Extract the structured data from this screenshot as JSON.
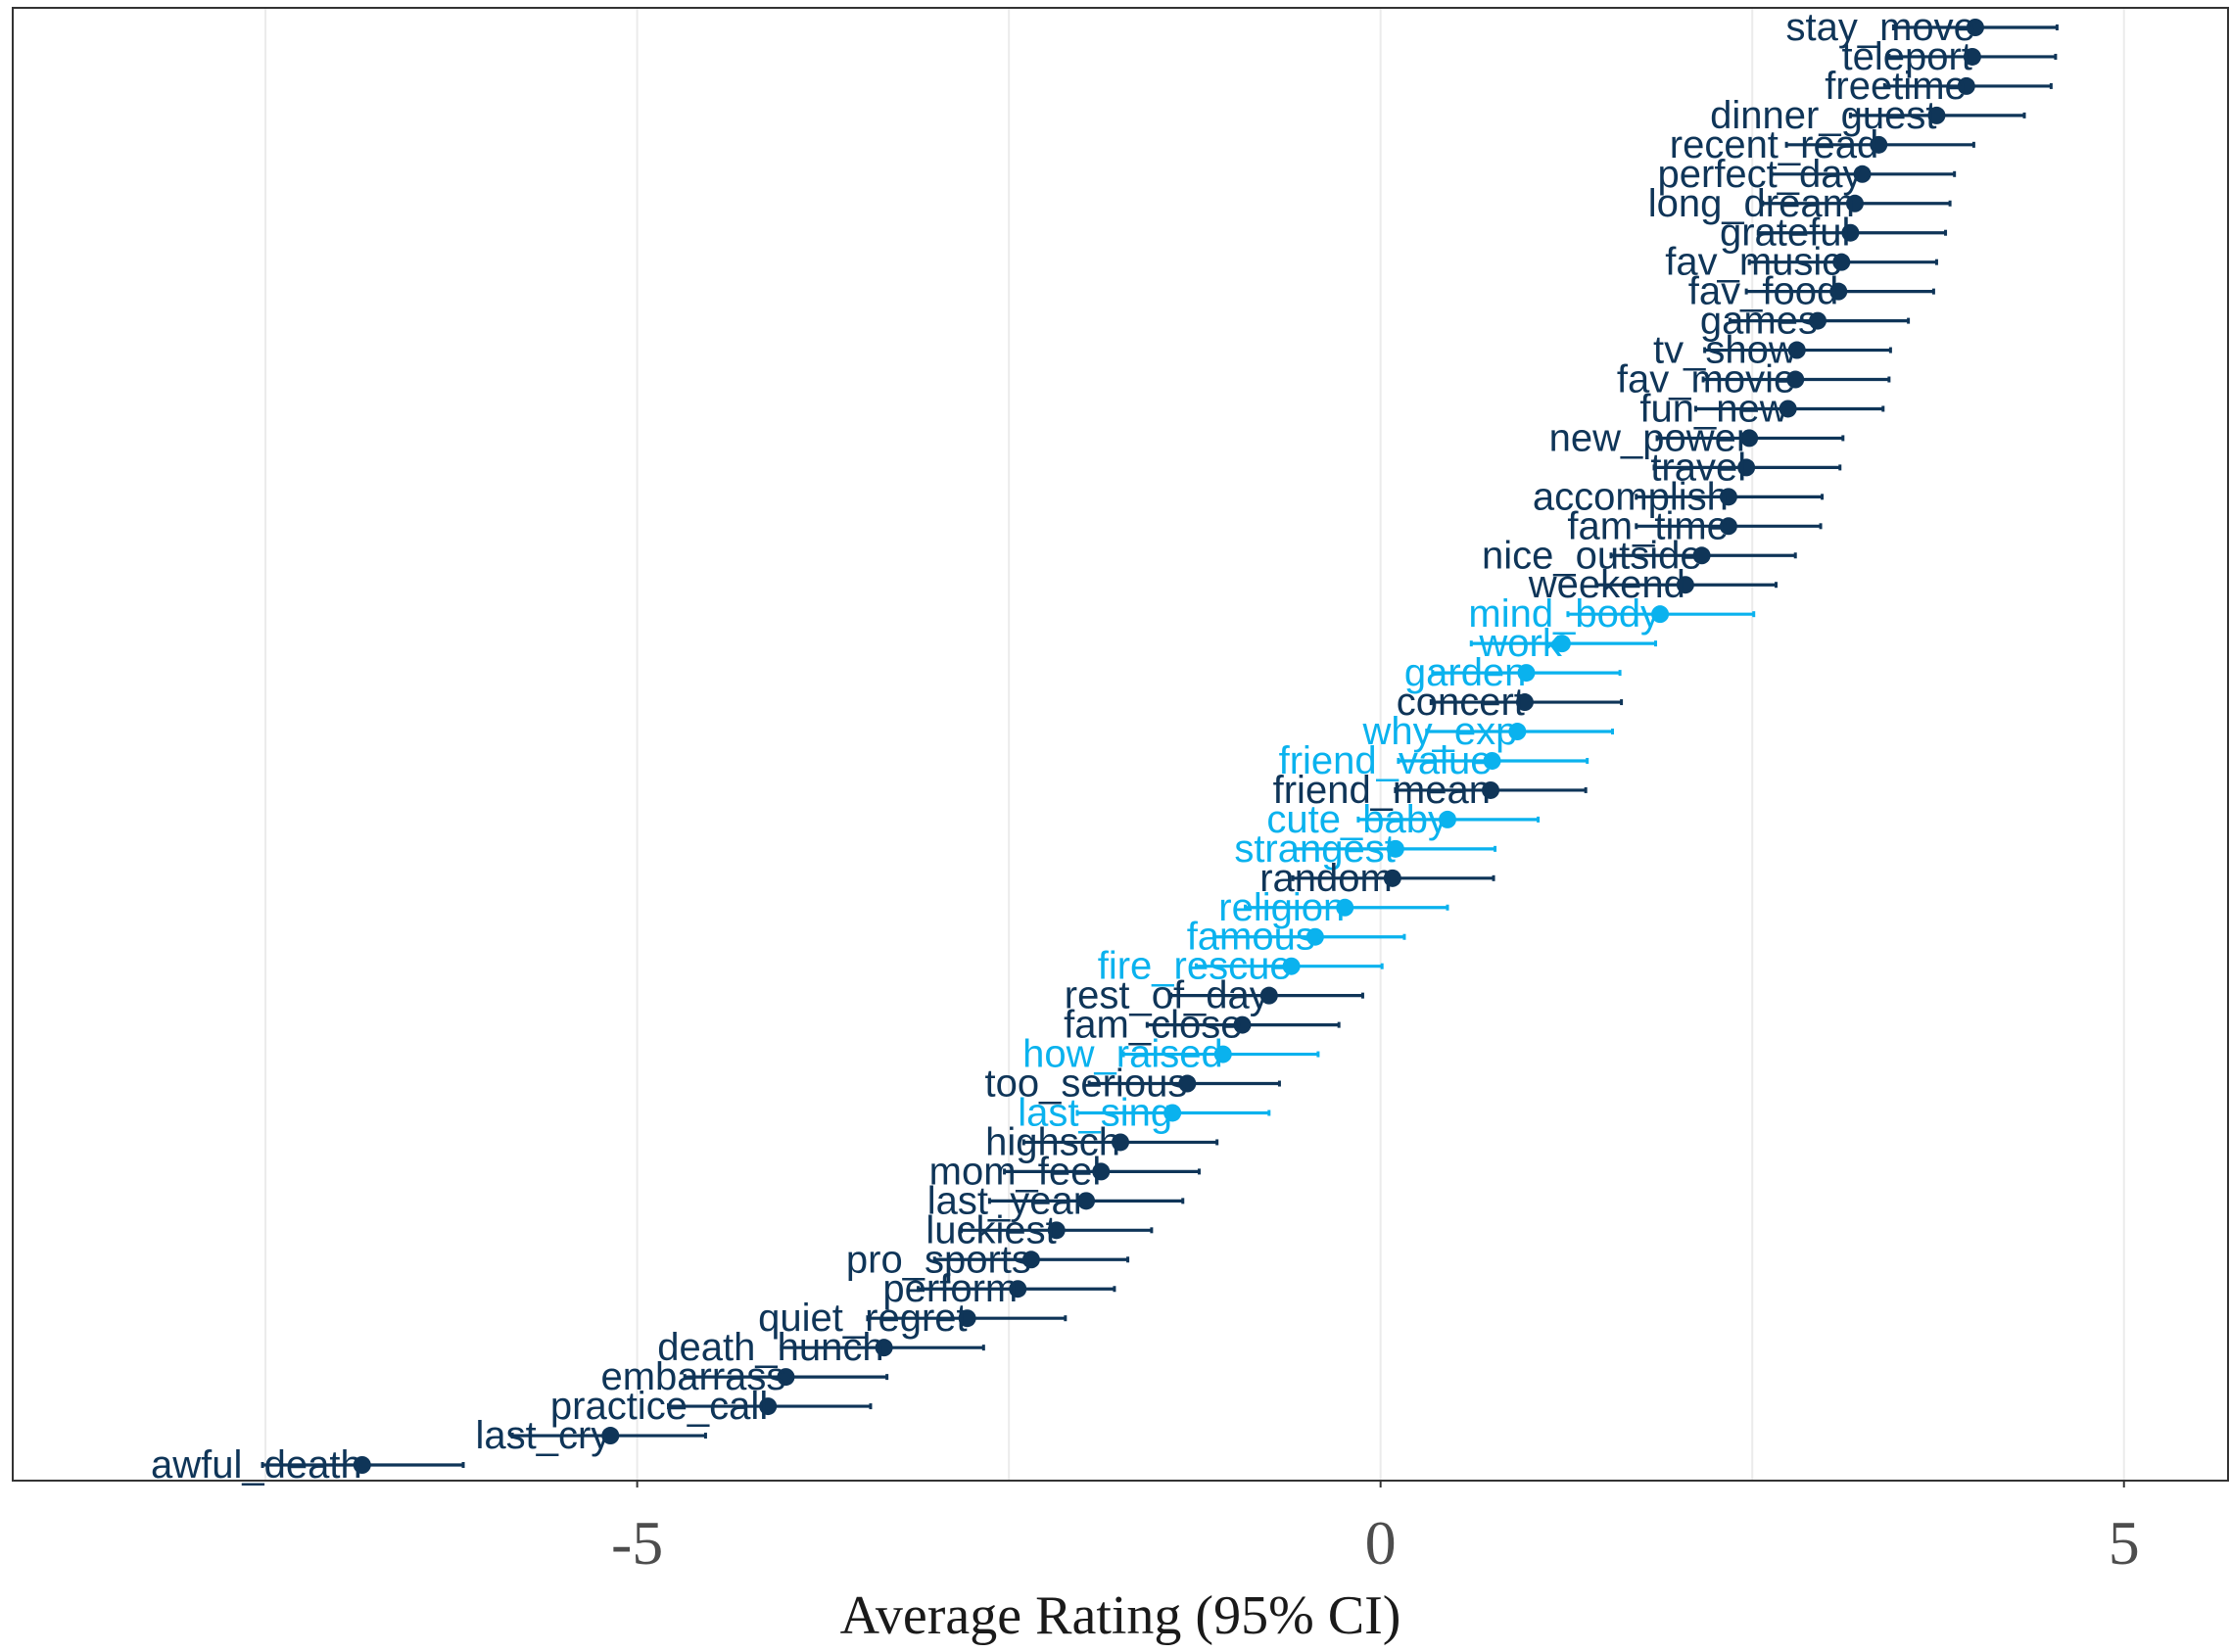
{
  "chart_data": {
    "type": "dot-interval",
    "title": "",
    "xlabel": "Average Rating (95% CI)",
    "ylabel": "",
    "xlim": [
      -9.2,
      5.7
    ],
    "xticks": [
      -5,
      0,
      5
    ],
    "xtick_labels": [
      "-5",
      "0",
      "5"
    ],
    "grid": true,
    "legend": "none",
    "colors": {
      "dark": "#0f3558",
      "light": "#0ab2ee",
      "grid": "#ebebeb",
      "frame": "#333333"
    },
    "points": [
      {
        "label": "stay_move",
        "mean": 4.0,
        "low": 3.45,
        "high": 4.55,
        "group": "dark"
      },
      {
        "label": "teleport",
        "mean": 3.98,
        "low": 3.42,
        "high": 4.54,
        "group": "dark"
      },
      {
        "label": "freetime",
        "mean": 3.94,
        "low": 3.39,
        "high": 4.51,
        "group": "dark"
      },
      {
        "label": "dinner_guest",
        "mean": 3.74,
        "low": 3.16,
        "high": 4.33,
        "group": "dark"
      },
      {
        "label": "recent_read",
        "mean": 3.35,
        "low": 2.73,
        "high": 3.99,
        "group": "dark"
      },
      {
        "label": "perfect_day",
        "mean": 3.24,
        "low": 2.63,
        "high": 3.86,
        "group": "dark"
      },
      {
        "label": "long_dream",
        "mean": 3.19,
        "low": 2.57,
        "high": 3.83,
        "group": "dark"
      },
      {
        "label": "grateful",
        "mean": 3.16,
        "low": 2.54,
        "high": 3.8,
        "group": "dark"
      },
      {
        "label": "fav_music",
        "mean": 3.1,
        "low": 2.48,
        "high": 3.74,
        "group": "dark"
      },
      {
        "label": "fav_food",
        "mean": 3.08,
        "low": 2.46,
        "high": 3.72,
        "group": "dark"
      },
      {
        "label": "games",
        "mean": 2.94,
        "low": 2.35,
        "high": 3.55,
        "group": "dark"
      },
      {
        "label": "tv_show",
        "mean": 2.8,
        "low": 2.18,
        "high": 3.43,
        "group": "dark"
      },
      {
        "label": "fav_movie",
        "mean": 2.79,
        "low": 2.17,
        "high": 3.42,
        "group": "dark"
      },
      {
        "label": "fun_new",
        "mean": 2.74,
        "low": 2.12,
        "high": 3.38,
        "group": "dark"
      },
      {
        "label": "new_power",
        "mean": 2.48,
        "low": 1.86,
        "high": 3.11,
        "group": "dark"
      },
      {
        "label": "travel",
        "mean": 2.46,
        "low": 1.84,
        "high": 3.09,
        "group": "dark"
      },
      {
        "label": "accomplish",
        "mean": 2.34,
        "low": 1.72,
        "high": 2.97,
        "group": "dark"
      },
      {
        "label": "fam_time",
        "mean": 2.34,
        "low": 1.72,
        "high": 2.96,
        "group": "dark"
      },
      {
        "label": "nice_outside",
        "mean": 2.16,
        "low": 1.55,
        "high": 2.79,
        "group": "dark"
      },
      {
        "label": "weekend",
        "mean": 2.05,
        "low": 1.45,
        "high": 2.66,
        "group": "dark"
      },
      {
        "label": "mind_body",
        "mean": 1.88,
        "low": 1.26,
        "high": 2.51,
        "group": "light"
      },
      {
        "label": "work",
        "mean": 1.22,
        "low": 0.61,
        "high": 1.85,
        "group": "light"
      },
      {
        "label": "garden",
        "mean": 0.98,
        "low": 0.35,
        "high": 1.61,
        "group": "light"
      },
      {
        "label": "concert",
        "mean": 0.97,
        "low": 0.34,
        "high": 1.62,
        "group": "dark"
      },
      {
        "label": "why_exp",
        "mean": 0.92,
        "low": 0.31,
        "high": 1.56,
        "group": "light"
      },
      {
        "label": "friend_value",
        "mean": 0.75,
        "low": 0.12,
        "high": 1.39,
        "group": "light"
      },
      {
        "label": "friend_mean",
        "mean": 0.74,
        "low": 0.1,
        "high": 1.38,
        "group": "dark"
      },
      {
        "label": "cute_baby",
        "mean": 0.45,
        "low": -0.15,
        "high": 1.06,
        "group": "light"
      },
      {
        "label": "strangest",
        "mean": 0.1,
        "low": -0.58,
        "high": 0.77,
        "group": "light"
      },
      {
        "label": "random",
        "mean": 0.08,
        "low": -0.59,
        "high": 0.76,
        "group": "dark"
      },
      {
        "label": "religion",
        "mean": -0.24,
        "low": -0.91,
        "high": 0.45,
        "group": "light"
      },
      {
        "label": "famous",
        "mean": -0.44,
        "low": -1.12,
        "high": 0.16,
        "group": "light"
      },
      {
        "label": "fire_rescue",
        "mean": -0.6,
        "low": -1.24,
        "high": 0.01,
        "group": "light"
      },
      {
        "label": "rest_of_day",
        "mean": -0.75,
        "low": -1.41,
        "high": -0.12,
        "group": "dark"
      },
      {
        "label": "fam_close",
        "mean": -0.93,
        "low": -1.57,
        "high": -0.28,
        "group": "dark"
      },
      {
        "label": "how_raised",
        "mean": -1.06,
        "low": -1.73,
        "high": -0.42,
        "group": "light"
      },
      {
        "label": "too_serious",
        "mean": -1.3,
        "low": -1.96,
        "high": -0.68,
        "group": "dark"
      },
      {
        "label": "last_sing",
        "mean": -1.4,
        "low": -2.04,
        "high": -0.75,
        "group": "light"
      },
      {
        "label": "highsch",
        "mean": -1.75,
        "low": -2.4,
        "high": -1.1,
        "group": "dark"
      },
      {
        "label": "mom_feel",
        "mean": -1.88,
        "low": -2.53,
        "high": -1.22,
        "group": "dark"
      },
      {
        "label": "last_year",
        "mean": -1.98,
        "low": -2.63,
        "high": -1.33,
        "group": "dark"
      },
      {
        "label": "luckiest",
        "mean": -2.18,
        "low": -2.82,
        "high": -1.54,
        "group": "dark"
      },
      {
        "label": "pro_sports",
        "mean": -2.35,
        "low": -3.0,
        "high": -1.7,
        "group": "dark"
      },
      {
        "label": "perform",
        "mean": -2.44,
        "low": -3.11,
        "high": -1.79,
        "group": "dark"
      },
      {
        "label": "quiet_regret",
        "mean": -2.78,
        "low": -3.45,
        "high": -2.12,
        "group": "dark"
      },
      {
        "label": "death_hunch",
        "mean": -3.34,
        "low": -4.03,
        "high": -2.67,
        "group": "dark"
      },
      {
        "label": "embarrass",
        "mean": -4.0,
        "low": -4.68,
        "high": -3.32,
        "group": "dark"
      },
      {
        "label": "practice_call",
        "mean": -4.12,
        "low": -4.79,
        "high": -3.43,
        "group": "dark"
      },
      {
        "label": "last_cry",
        "mean": -5.18,
        "low": -5.84,
        "high": -4.54,
        "group": "dark"
      },
      {
        "label": "awful_death",
        "mean": -6.85,
        "low": -7.52,
        "high": -6.17,
        "group": "dark"
      }
    ]
  }
}
